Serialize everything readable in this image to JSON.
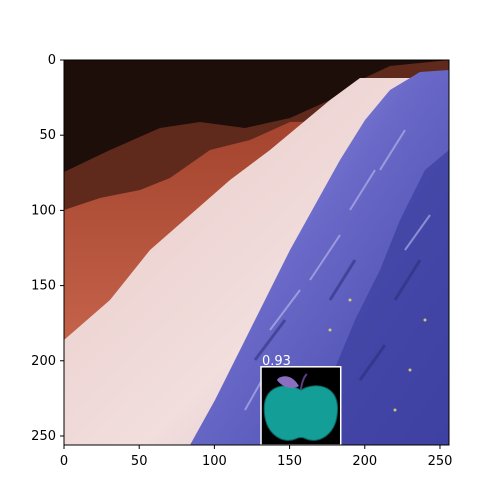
{
  "figure": {
    "x_ticks": [
      "0",
      "50",
      "100",
      "150",
      "200",
      "250"
    ],
    "y_ticks": [
      "0",
      "50",
      "100",
      "150",
      "200",
      "250"
    ],
    "x_tick_values": [
      0,
      50,
      100,
      150,
      200,
      250
    ],
    "y_tick_values": [
      0,
      50,
      100,
      150,
      200,
      250
    ],
    "image_extent": [
      0,
      256,
      256,
      0
    ]
  },
  "detection": {
    "score": "0.93",
    "icon": "apple-icon",
    "box_color": "#ffffff",
    "apple_color": "#149e98",
    "leaf_color": "#8a6fc0",
    "box": {
      "x0": 131,
      "y0": 204,
      "x1": 184,
      "y1": 256
    }
  },
  "image_colors": {
    "sky": "#1d0e0a",
    "ridge": "#5f2a1c",
    "slope_red": "#c0583f",
    "snow": "#f0d9d8",
    "rock_blue": "#5558b8",
    "rock_light": "#9c9ce0"
  }
}
